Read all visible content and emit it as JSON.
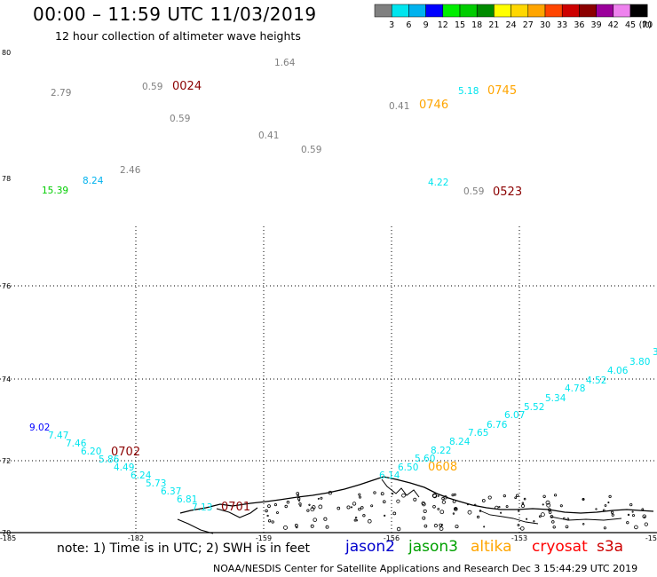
{
  "header": {
    "title": "00:00 – 11:59 UTC 11/03/2019",
    "subtitle": "12 hour collection of altimeter wave heights"
  },
  "colorbar": {
    "labels": [
      "3",
      "6",
      "9",
      "12",
      "15",
      "18",
      "21",
      "24",
      "27",
      "30",
      "33",
      "36",
      "39",
      "42",
      "45",
      "70"
    ],
    "unit": "(ft)",
    "colors": [
      "#808080",
      "#00e5ee",
      "#00b2ee",
      "#0000ff",
      "#00ee00",
      "#00cd00",
      "#008b00",
      "#ffff00",
      "#ffd700",
      "#ffa500",
      "#ff4500",
      "#cd0000",
      "#8b0000",
      "#9b009b",
      "#ee82ee",
      "#000000"
    ]
  },
  "axes": {
    "lat_labels": [
      "80",
      "78",
      "76",
      "74",
      "72",
      "70"
    ],
    "lon_labels": [
      "-185",
      "-182",
      "-159",
      "-156",
      "-153",
      "-15"
    ]
  },
  "chart_data": {
    "type": "scatter",
    "title": "12 hour collection of altimeter wave heights",
    "units": "ft",
    "points": [
      {
        "label": "1.64",
        "color": "#808080"
      },
      {
        "label": "2.79",
        "color": "#808080"
      },
      {
        "label": "0.59",
        "color": "#808080"
      },
      {
        "label": "0024",
        "color": "#8b0000"
      },
      {
        "label": "0.59",
        "color": "#808080"
      },
      {
        "label": "0.41",
        "color": "#808080"
      },
      {
        "label": "0.59",
        "color": "#808080"
      },
      {
        "label": "2.46",
        "color": "#808080"
      },
      {
        "label": "8.24",
        "color": "#00b2ee"
      },
      {
        "label": "15.39",
        "color": "#00cd00"
      },
      {
        "label": "5.18",
        "color": "#00e5ee"
      },
      {
        "label": "0745",
        "color": "#ffa500"
      },
      {
        "label": "0.41",
        "color": "#808080"
      },
      {
        "label": "0746",
        "color": "#ffa500"
      },
      {
        "label": "4.22",
        "color": "#00e5ee"
      },
      {
        "label": "0.59",
        "color": "#808080"
      },
      {
        "label": "0523",
        "color": "#8b0000"
      },
      {
        "label": "9.02",
        "color": "#0000ff"
      },
      {
        "label": "7.47",
        "color": "#00e5ee"
      },
      {
        "label": "7.46",
        "color": "#00e5ee"
      },
      {
        "label": "6.20",
        "color": "#00e5ee"
      },
      {
        "label": "5.86",
        "color": "#00e5ee"
      },
      {
        "label": "0702",
        "color": "#8b0000"
      },
      {
        "label": "4.49",
        "color": "#00e5ee"
      },
      {
        "label": "6.24",
        "color": "#00e5ee"
      },
      {
        "label": "5.73",
        "color": "#00e5ee"
      },
      {
        "label": "6.37",
        "color": "#00e5ee"
      },
      {
        "label": "6.81",
        "color": "#00e5ee"
      },
      {
        "label": "7.13",
        "color": "#00e5ee"
      },
      {
        "label": "0701",
        "color": "#8b0000"
      },
      {
        "label": "6.14",
        "color": "#00e5ee"
      },
      {
        "label": "6.50",
        "color": "#00e5ee"
      },
      {
        "label": "0608",
        "color": "#ffa500"
      },
      {
        "label": "5.60",
        "color": "#00e5ee"
      },
      {
        "label": "8.22",
        "color": "#00e5ee"
      },
      {
        "label": "8.24",
        "color": "#00e5ee"
      },
      {
        "label": "7.65",
        "color": "#00e5ee"
      },
      {
        "label": "6.76",
        "color": "#00e5ee"
      },
      {
        "label": "6.07",
        "color": "#00e5ee"
      },
      {
        "label": "5.52",
        "color": "#00e5ee"
      },
      {
        "label": "5.34",
        "color": "#00e5ee"
      },
      {
        "label": "4.78",
        "color": "#00e5ee"
      },
      {
        "label": "4.52",
        "color": "#00e5ee"
      },
      {
        "label": "4.06",
        "color": "#00e5ee"
      },
      {
        "label": "3.80",
        "color": "#00e5ee"
      },
      {
        "label": "3",
        "color": "#00e5ee"
      }
    ]
  },
  "footer": {
    "note": "note:  1) Time is in UTC; 2) SWH is in feet",
    "satellites": [
      {
        "name": "jason2",
        "color": "#0000cd"
      },
      {
        "name": "jason3",
        "color": "#00a000"
      },
      {
        "name": "altika",
        "color": "#ffa500"
      },
      {
        "name": "cryosat",
        "color": "#ff0000"
      },
      {
        "name": "s3a",
        "color": "#cd0000"
      }
    ],
    "credit": "NOAA/NESDIS Center for Satellite Applications and Research    Dec  3 15:44:29 UTC 2019"
  }
}
